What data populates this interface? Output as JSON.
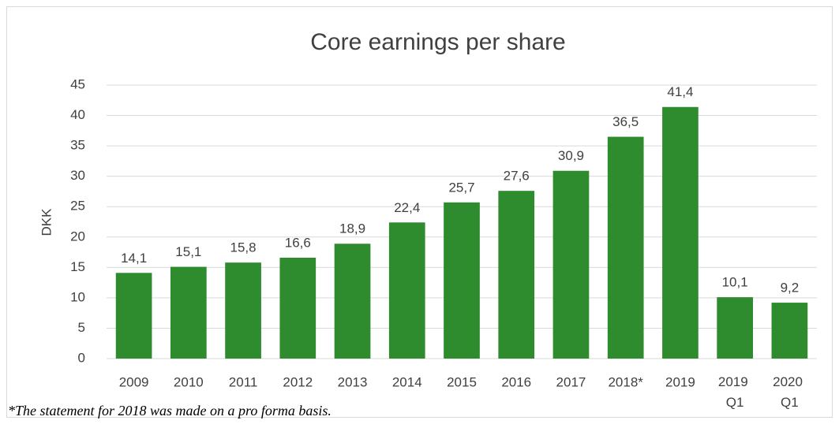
{
  "chart_data": {
    "type": "bar",
    "title": "Core earnings per share",
    "y_label": "DKK",
    "categories": [
      "2009",
      "2010",
      "2011",
      "2012",
      "2013",
      "2014",
      "2015",
      "2016",
      "2017",
      "2018*",
      "2019",
      "2019 Q1",
      "2020 Q1"
    ],
    "values": [
      14.1,
      15.1,
      15.8,
      16.6,
      18.9,
      22.4,
      25.7,
      27.6,
      30.9,
      36.5,
      41.4,
      10.1,
      9.2
    ],
    "value_labels": [
      "14,1",
      "15,1",
      "15,8",
      "16,6",
      "18,9",
      "22,4",
      "25,7",
      "27,6",
      "30,9",
      "36,5",
      "41,4",
      "10,1",
      "9,2"
    ],
    "color": "#2e8b2e",
    "ylim": [
      0,
      45
    ],
    "yticks": [
      0,
      5,
      10,
      15,
      20,
      25,
      30,
      35,
      40,
      45
    ],
    "grid": true,
    "footnote": "*The statement for 2018 was made on a pro forma basis."
  }
}
